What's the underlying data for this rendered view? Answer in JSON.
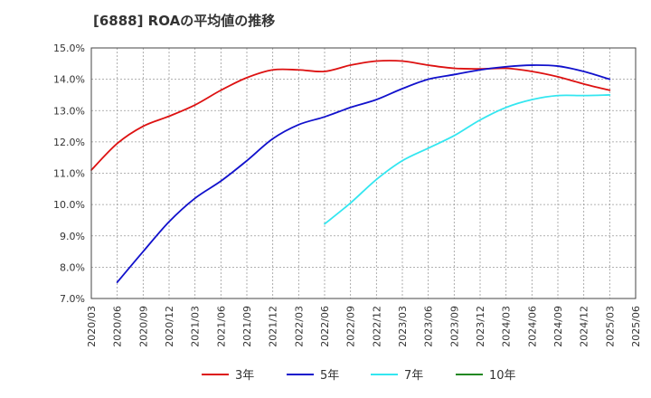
{
  "chart_data": {
    "type": "line",
    "title": "[6888]  ROAの平均値の推移",
    "xlabel": "",
    "ylabel": "",
    "ylim": [
      7.0,
      15.0
    ],
    "y_ticks": [
      "7.0%",
      "8.0%",
      "9.0%",
      "10.0%",
      "11.0%",
      "12.0%",
      "13.0%",
      "14.0%",
      "15.0%"
    ],
    "x": [
      "2020/03",
      "2020/06",
      "2020/09",
      "2020/12",
      "2021/03",
      "2021/06",
      "2021/09",
      "2021/12",
      "2022/03",
      "2022/06",
      "2022/09",
      "2022/12",
      "2023/03",
      "2023/06",
      "2023/09",
      "2023/12",
      "2024/03",
      "2024/06",
      "2024/09",
      "2024/12",
      "2025/03",
      "2025/06"
    ],
    "grid": true,
    "legend_position": "bottom",
    "series": [
      {
        "name": "3年",
        "color": "#dd1111",
        "values": [
          11.1,
          11.95,
          12.5,
          12.82,
          13.18,
          13.65,
          14.05,
          14.3,
          14.3,
          14.25,
          14.45,
          14.58,
          14.58,
          14.45,
          14.35,
          14.33,
          14.35,
          14.25,
          14.08,
          13.85,
          13.65,
          null
        ]
      },
      {
        "name": "5年",
        "color": "#1111cc",
        "values": [
          null,
          7.52,
          8.5,
          9.45,
          10.2,
          10.75,
          11.4,
          12.1,
          12.55,
          12.8,
          13.1,
          13.35,
          13.7,
          14.0,
          14.15,
          14.3,
          14.4,
          14.45,
          14.42,
          14.25,
          14.0,
          null
        ]
      },
      {
        "name": "7年",
        "color": "#33e6f0",
        "values": [
          null,
          null,
          null,
          null,
          null,
          null,
          null,
          null,
          null,
          9.38,
          10.05,
          10.8,
          11.4,
          11.8,
          12.2,
          12.7,
          13.1,
          13.35,
          13.48,
          13.48,
          13.5,
          null
        ]
      },
      {
        "name": "10年",
        "color": "#228822",
        "values": [
          null,
          null,
          null,
          null,
          null,
          null,
          null,
          null,
          null,
          null,
          null,
          null,
          null,
          null,
          null,
          null,
          null,
          null,
          null,
          null,
          null,
          null
        ]
      }
    ]
  }
}
